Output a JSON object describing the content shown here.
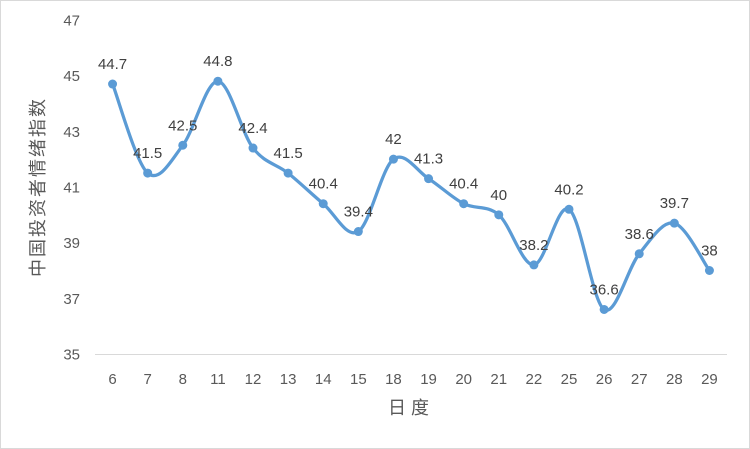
{
  "chart_data": {
    "type": "line",
    "title": "",
    "xlabel": "日度",
    "ylabel": "中国投资者情绪指数",
    "categories": [
      "6",
      "7",
      "8",
      "11",
      "12",
      "13",
      "14",
      "15",
      "18",
      "19",
      "20",
      "21",
      "22",
      "25",
      "26",
      "27",
      "28",
      "29"
    ],
    "series": [
      {
        "name": "中国投资者情绪指数",
        "values": [
          44.7,
          41.5,
          42.5,
          44.8,
          42.4,
          41.5,
          40.4,
          39.4,
          42,
          41.3,
          40.4,
          40,
          38.2,
          40.2,
          36.6,
          38.6,
          39.7,
          38
        ],
        "point_labels": [
          "44.7",
          "41.5",
          "42.5",
          "44.8",
          "42.4",
          "41.5",
          "40.4",
          "39.4",
          "42",
          "41.3",
          "40.4",
          "40",
          "38.2",
          "40.2",
          "36.6",
          "38.6",
          "39.7",
          "38"
        ]
      }
    ],
    "ylim": [
      35,
      47
    ],
    "yticks": [
      "35",
      "37",
      "39",
      "41",
      "43",
      "45",
      "47"
    ],
    "grid": false,
    "legend_position": "none",
    "line_style": "smooth",
    "markers": "circle",
    "colors": {
      "line": "#5B9BD5",
      "marker": "#5B9BD5",
      "data_label": "#404040",
      "tick_label": "#595959",
      "axis_title": "#595959",
      "axis_line": "#D9D9D9",
      "frame_border": "#D9D9D9",
      "background": "#FFFFFF"
    }
  }
}
